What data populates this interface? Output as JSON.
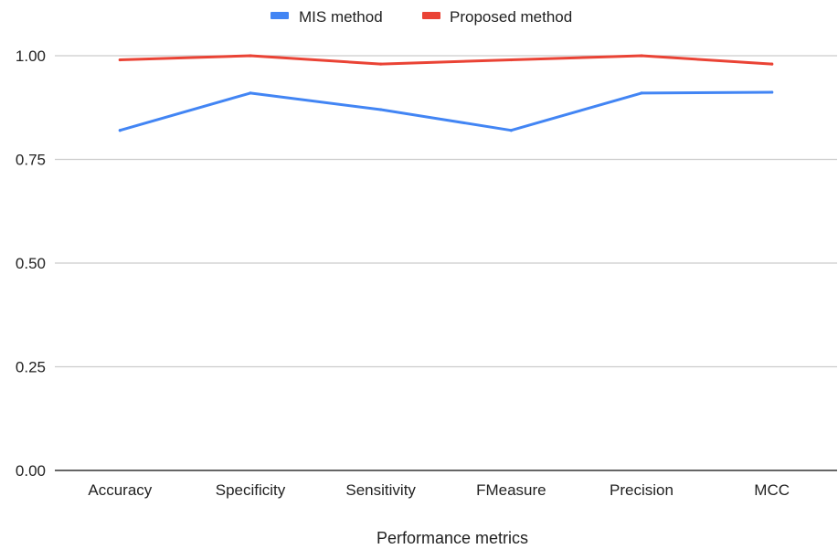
{
  "chart_data": {
    "type": "line",
    "xlabel": "Performance metrics",
    "ylabel": "",
    "ylim": [
      0,
      1
    ],
    "yticks": [
      "0.00",
      "0.25",
      "0.50",
      "0.75",
      "1.00"
    ],
    "categories": [
      "Accuracy",
      "Specificity",
      "Sensitivity",
      "FMeasure",
      "Precision",
      "MCC"
    ],
    "series": [
      {
        "name": "MIS method",
        "color": "#4285f4",
        "values": [
          0.82,
          0.91,
          0.87,
          0.82,
          0.91,
          0.912
        ]
      },
      {
        "name": "Proposed method",
        "color": "#ea4335",
        "values": [
          0.99,
          1.0,
          0.98,
          0.99,
          1.0,
          0.98
        ]
      }
    ],
    "legend": "top-center",
    "grid": true
  }
}
